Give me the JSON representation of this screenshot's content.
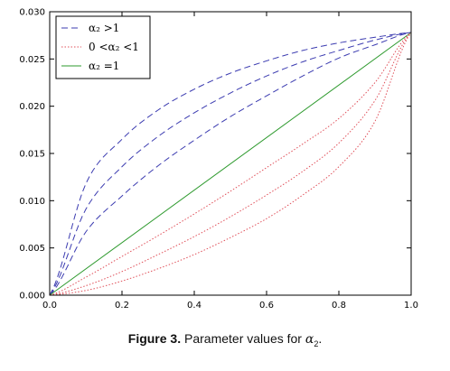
{
  "chart_data": {
    "type": "line",
    "xlim": [
      0.0,
      1.0
    ],
    "ylim": [
      0.0,
      0.03
    ],
    "x_ticks": [
      "0.0",
      "0.2",
      "0.4",
      "0.6",
      "0.8",
      "1.0"
    ],
    "y_ticks": [
      "0.000",
      "0.005",
      "0.010",
      "0.015",
      "0.020",
      "0.025",
      "0.030"
    ],
    "grid": false,
    "legend_position": "top-left",
    "legend": [
      {
        "label": "α₂ >1",
        "style": "dashed",
        "color": "#3b3bb0"
      },
      {
        "label": "0 <α₂ <1",
        "style": "dotted",
        "color": "#e0505a"
      },
      {
        "label": "α₂ =1",
        "style": "solid",
        "color": "#2e9a2e"
      }
    ],
    "series": [
      {
        "group": "dashed",
        "color": "#3b3bb0",
        "x": [
          0,
          0.1,
          0.2,
          0.3,
          0.4,
          0.5,
          0.6,
          0.7,
          0.8,
          0.9,
          1.0
        ],
        "y": [
          0,
          0.0118,
          0.0165,
          0.0196,
          0.0218,
          0.0235,
          0.0248,
          0.0259,
          0.0267,
          0.0273,
          0.0278
        ]
      },
      {
        "group": "dashed",
        "color": "#3b3bb0",
        "x": [
          0,
          0.1,
          0.2,
          0.3,
          0.4,
          0.5,
          0.6,
          0.7,
          0.8,
          0.9,
          1.0
        ],
        "y": [
          0,
          0.0091,
          0.0136,
          0.0168,
          0.0193,
          0.0214,
          0.0232,
          0.0247,
          0.0259,
          0.027,
          0.0278
        ]
      },
      {
        "group": "dashed",
        "color": "#3b3bb0",
        "x": [
          0,
          0.1,
          0.2,
          0.3,
          0.4,
          0.5,
          0.6,
          0.7,
          0.8,
          0.9,
          1.0
        ],
        "y": [
          0,
          0.0067,
          0.0105,
          0.0137,
          0.0164,
          0.0189,
          0.0211,
          0.0232,
          0.0251,
          0.0265,
          0.0278
        ]
      },
      {
        "group": "solid",
        "color": "#2e9a2e",
        "x": [
          0,
          1.0
        ],
        "y": [
          0,
          0.0278
        ]
      },
      {
        "group": "dotted",
        "color": "#e0505a",
        "x": [
          0,
          0.1,
          0.2,
          0.3,
          0.4,
          0.5,
          0.6,
          0.7,
          0.8,
          0.9,
          1.0
        ],
        "y": [
          0,
          0.0019,
          0.0041,
          0.0063,
          0.0086,
          0.011,
          0.0135,
          0.016,
          0.0187,
          0.0225,
          0.0278
        ]
      },
      {
        "group": "dotted",
        "color": "#e0505a",
        "x": [
          0,
          0.1,
          0.2,
          0.3,
          0.4,
          0.5,
          0.6,
          0.7,
          0.8,
          0.9,
          1.0
        ],
        "y": [
          0,
          0.001,
          0.0025,
          0.0043,
          0.0062,
          0.0083,
          0.0106,
          0.0131,
          0.0161,
          0.0206,
          0.0278
        ]
      },
      {
        "group": "dotted",
        "color": "#e0505a",
        "x": [
          0,
          0.1,
          0.2,
          0.3,
          0.4,
          0.5,
          0.6,
          0.7,
          0.8,
          0.9,
          1.0
        ],
        "y": [
          0,
          0.0005,
          0.0015,
          0.0028,
          0.0043,
          0.0061,
          0.0081,
          0.0106,
          0.0136,
          0.0184,
          0.0278
        ]
      }
    ]
  },
  "caption": {
    "label": "Figure 3.",
    "text": "Parameter values for",
    "symbol": "α",
    "subscript": "2",
    "end": "."
  }
}
